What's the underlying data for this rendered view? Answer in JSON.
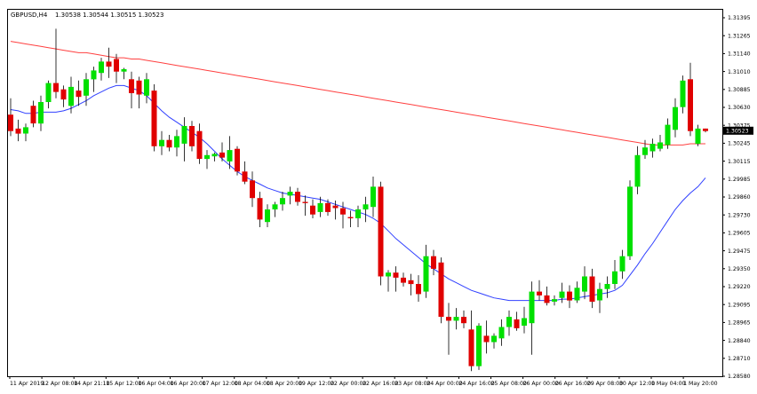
{
  "header": {
    "symbol_label": "GBPUSD,H4",
    "ohlc_label": "1.30538 1.30544 1.30515 1.30523"
  },
  "price_tag": "1.30523",
  "chart_data": {
    "type": "candlestick",
    "title": "GBPUSD,H4  1.30538 1.30544 1.30515 1.30523",
    "ylim": [
      1.2858,
      1.3148
    ],
    "y_ticks": [
      "1.31395",
      "1.31265",
      "1.31140",
      "1.31010",
      "1.30885",
      "1.30630",
      "1.30375",
      "1.30245",
      "1.30115",
      "1.29985",
      "1.29860",
      "1.29730",
      "1.29605",
      "1.29475",
      "1.29350",
      "1.29220",
      "1.29095",
      "1.28965",
      "1.28840",
      "1.28710",
      "1.28580"
    ],
    "x_ticks": [
      "11 Apr 2019",
      "12 Apr 08:00",
      "14 Apr 21:10",
      "15 Apr 12:00",
      "16 Apr 04:00",
      "16 Apr 20:00",
      "17 Apr 12:00",
      "18 Apr 04:00",
      "18 Apr 20:00",
      "19 Apr 12:00",
      "22 Apr 00:00",
      "22 Apr 16:00",
      "23 Apr 08:00",
      "24 Apr 00:00",
      "24 Apr 16:00",
      "25 Apr 08:00",
      "26 Apr 00:00",
      "26 Apr 16:00",
      "29 Apr 08:00",
      "30 Apr 12:00",
      "1 May 04:00",
      "1 May 20:00"
    ],
    "last_price": 1.30523,
    "colors": {
      "bull": "#00e000",
      "bear": "#e00000",
      "ma_slow": "#ff4040",
      "ma_fast": "#3040ff",
      "grid": "none"
    },
    "candles": [
      {
        "o": 1.3065,
        "h": 1.3078,
        "l": 1.3048,
        "c": 1.3052
      },
      {
        "o": 1.3054,
        "h": 1.3061,
        "l": 1.3044,
        "c": 1.305
      },
      {
        "o": 1.305,
        "h": 1.3058,
        "l": 1.3044,
        "c": 1.3055
      },
      {
        "o": 1.3072,
        "h": 1.3076,
        "l": 1.3055,
        "c": 1.3058
      },
      {
        "o": 1.3058,
        "h": 1.308,
        "l": 1.3052,
        "c": 1.3075
      },
      {
        "o": 1.3075,
        "h": 1.3092,
        "l": 1.307,
        "c": 1.309
      },
      {
        "o": 1.309,
        "h": 1.3133,
        "l": 1.3078,
        "c": 1.3083
      },
      {
        "o": 1.3085,
        "h": 1.3088,
        "l": 1.3071,
        "c": 1.3077
      },
      {
        "o": 1.3072,
        "h": 1.3095,
        "l": 1.3066,
        "c": 1.3087
      },
      {
        "o": 1.3084,
        "h": 1.3092,
        "l": 1.3072,
        "c": 1.3079
      },
      {
        "o": 1.308,
        "h": 1.3098,
        "l": 1.3072,
        "c": 1.3093
      },
      {
        "o": 1.3093,
        "h": 1.3103,
        "l": 1.3083,
        "c": 1.31
      },
      {
        "o": 1.3098,
        "h": 1.311,
        "l": 1.3092,
        "c": 1.3107
      },
      {
        "o": 1.3107,
        "h": 1.3118,
        "l": 1.3094,
        "c": 1.3103
      },
      {
        "o": 1.3109,
        "h": 1.3113,
        "l": 1.309,
        "c": 1.3099
      },
      {
        "o": 1.3099,
        "h": 1.3102,
        "l": 1.3093,
        "c": 1.3101
      },
      {
        "o": 1.3093,
        "h": 1.3099,
        "l": 1.307,
        "c": 1.3082
      },
      {
        "o": 1.3092,
        "h": 1.3095,
        "l": 1.307,
        "c": 1.3081
      },
      {
        "o": 1.308,
        "h": 1.3098,
        "l": 1.3074,
        "c": 1.3093
      },
      {
        "o": 1.3084,
        "h": 1.3089,
        "l": 1.3036,
        "c": 1.304
      },
      {
        "o": 1.304,
        "h": 1.3052,
        "l": 1.3033,
        "c": 1.3045
      },
      {
        "o": 1.3045,
        "h": 1.3049,
        "l": 1.3036,
        "c": 1.3039
      },
      {
        "o": 1.3039,
        "h": 1.3053,
        "l": 1.3032,
        "c": 1.3048
      },
      {
        "o": 1.3042,
        "h": 1.3063,
        "l": 1.3028,
        "c": 1.3056
      },
      {
        "o": 1.3056,
        "h": 1.306,
        "l": 1.3036,
        "c": 1.304
      },
      {
        "o": 1.3052,
        "h": 1.3058,
        "l": 1.3026,
        "c": 1.303
      },
      {
        "o": 1.303,
        "h": 1.3037,
        "l": 1.3022,
        "c": 1.3033
      },
      {
        "o": 1.3032,
        "h": 1.3035,
        "l": 1.3028,
        "c": 1.3034
      },
      {
        "o": 1.3035,
        "h": 1.3043,
        "l": 1.3028,
        "c": 1.3031
      },
      {
        "o": 1.3028,
        "h": 1.3048,
        "l": 1.3022,
        "c": 1.3037
      },
      {
        "o": 1.3038,
        "h": 1.304,
        "l": 1.3017,
        "c": 1.302
      },
      {
        "o": 1.302,
        "h": 1.3028,
        "l": 1.301,
        "c": 1.3012
      },
      {
        "o": 1.3013,
        "h": 1.302,
        "l": 1.2992,
        "c": 1.2999
      },
      {
        "o": 1.2999,
        "h": 1.3004,
        "l": 1.2976,
        "c": 1.2982
      },
      {
        "o": 1.298,
        "h": 1.2994,
        "l": 1.2976,
        "c": 1.299
      },
      {
        "o": 1.299,
        "h": 1.2996,
        "l": 1.2984,
        "c": 1.2994
      },
      {
        "o": 1.2994,
        "h": 1.3004,
        "l": 1.2989,
        "c": 1.2999
      },
      {
        "o": 1.3001,
        "h": 1.3008,
        "l": 1.2994,
        "c": 1.3004
      },
      {
        "o": 1.3004,
        "h": 1.3007,
        "l": 1.2993,
        "c": 1.2996
      },
      {
        "o": 1.2996,
        "h": 1.3001,
        "l": 1.2985,
        "c": 1.2995
      },
      {
        "o": 1.2993,
        "h": 1.2998,
        "l": 1.2983,
        "c": 1.2986
      },
      {
        "o": 1.2988,
        "h": 1.3,
        "l": 1.2984,
        "c": 1.2995
      },
      {
        "o": 1.2995,
        "h": 1.2998,
        "l": 1.2985,
        "c": 1.2988
      },
      {
        "o": 1.2993,
        "h": 1.2997,
        "l": 1.2982,
        "c": 1.2991
      },
      {
        "o": 1.2991,
        "h": 1.2996,
        "l": 1.2975,
        "c": 1.2986
      },
      {
        "o": 1.2984,
        "h": 1.2989,
        "l": 1.2976,
        "c": 1.2983
      },
      {
        "o": 1.2983,
        "h": 1.2993,
        "l": 1.2976,
        "c": 1.299
      },
      {
        "o": 1.299,
        "h": 1.3,
        "l": 1.298,
        "c": 1.2994
      },
      {
        "o": 1.2992,
        "h": 1.3016,
        "l": 1.2984,
        "c": 1.3008
      },
      {
        "o": 1.3008,
        "h": 1.3012,
        "l": 1.293,
        "c": 1.2937
      },
      {
        "o": 1.2937,
        "h": 1.2942,
        "l": 1.2925,
        "c": 1.294
      },
      {
        "o": 1.294,
        "h": 1.2945,
        "l": 1.2925,
        "c": 1.2936
      },
      {
        "o": 1.2936,
        "h": 1.294,
        "l": 1.2929,
        "c": 1.2932
      },
      {
        "o": 1.2934,
        "h": 1.2939,
        "l": 1.2922,
        "c": 1.2931
      },
      {
        "o": 1.2931,
        "h": 1.2938,
        "l": 1.2917,
        "c": 1.2923
      },
      {
        "o": 1.2925,
        "h": 1.2962,
        "l": 1.292,
        "c": 1.2953
      },
      {
        "o": 1.2953,
        "h": 1.2958,
        "l": 1.2938,
        "c": 1.2943
      },
      {
        "o": 1.2948,
        "h": 1.2952,
        "l": 1.29,
        "c": 1.2905
      },
      {
        "o": 1.2905,
        "h": 1.2916,
        "l": 1.2875,
        "c": 1.2902
      },
      {
        "o": 1.2902,
        "h": 1.2912,
        "l": 1.2895,
        "c": 1.2905
      },
      {
        "o": 1.2905,
        "h": 1.291,
        "l": 1.2896,
        "c": 1.29
      },
      {
        "o": 1.2895,
        "h": 1.291,
        "l": 1.2862,
        "c": 1.2866
      },
      {
        "o": 1.2866,
        "h": 1.29,
        "l": 1.2863,
        "c": 1.2898
      },
      {
        "o": 1.289,
        "h": 1.2902,
        "l": 1.2876,
        "c": 1.2885
      },
      {
        "o": 1.2885,
        "h": 1.2892,
        "l": 1.288,
        "c": 1.289
      },
      {
        "o": 1.2888,
        "h": 1.2903,
        "l": 1.2882,
        "c": 1.2897
      },
      {
        "o": 1.2897,
        "h": 1.291,
        "l": 1.289,
        "c": 1.2905
      },
      {
        "o": 1.2903,
        "h": 1.2909,
        "l": 1.2894,
        "c": 1.2896
      },
      {
        "o": 1.2898,
        "h": 1.2913,
        "l": 1.2892,
        "c": 1.2904
      },
      {
        "o": 1.29,
        "h": 1.2933,
        "l": 1.2875,
        "c": 1.2925
      },
      {
        "o": 1.2925,
        "h": 1.2934,
        "l": 1.2918,
        "c": 1.2922
      },
      {
        "o": 1.2922,
        "h": 1.2929,
        "l": 1.2914,
        "c": 1.2916
      },
      {
        "o": 1.2917,
        "h": 1.2922,
        "l": 1.2914,
        "c": 1.2919
      },
      {
        "o": 1.292,
        "h": 1.2932,
        "l": 1.2916,
        "c": 1.2925
      },
      {
        "o": 1.2925,
        "h": 1.293,
        "l": 1.2912,
        "c": 1.2918
      },
      {
        "o": 1.2918,
        "h": 1.2933,
        "l": 1.2916,
        "c": 1.2928
      },
      {
        "o": 1.2925,
        "h": 1.2945,
        "l": 1.2919,
        "c": 1.2937
      },
      {
        "o": 1.2937,
        "h": 1.2943,
        "l": 1.2912,
        "c": 1.2917
      },
      {
        "o": 1.2918,
        "h": 1.2932,
        "l": 1.2908,
        "c": 1.2927
      },
      {
        "o": 1.2927,
        "h": 1.2937,
        "l": 1.292,
        "c": 1.2931
      },
      {
        "o": 1.2931,
        "h": 1.295,
        "l": 1.2927,
        "c": 1.2941
      },
      {
        "o": 1.2941,
        "h": 1.2958,
        "l": 1.2935,
        "c": 1.2953
      },
      {
        "o": 1.2953,
        "h": 1.3013,
        "l": 1.295,
        "c": 1.3008
      },
      {
        "o": 1.3008,
        "h": 1.304,
        "l": 1.3002,
        "c": 1.3033
      },
      {
        "o": 1.3033,
        "h": 1.3045,
        "l": 1.303,
        "c": 1.3039
      },
      {
        "o": 1.3036,
        "h": 1.3046,
        "l": 1.3031,
        "c": 1.3042
      },
      {
        "o": 1.3038,
        "h": 1.3049,
        "l": 1.3036,
        "c": 1.3043
      },
      {
        "o": 1.3041,
        "h": 1.3062,
        "l": 1.3038,
        "c": 1.3057
      },
      {
        "o": 1.3053,
        "h": 1.3078,
        "l": 1.3047,
        "c": 1.3071
      },
      {
        "o": 1.3071,
        "h": 1.3096,
        "l": 1.3066,
        "c": 1.3092
      },
      {
        "o": 1.3093,
        "h": 1.3106,
        "l": 1.3048,
        "c": 1.3052
      },
      {
        "o": 1.3042,
        "h": 1.3057,
        "l": 1.304,
        "c": 1.3054
      },
      {
        "o": 1.3054,
        "h": 1.3054,
        "l": 1.3051,
        "c": 1.3052
      }
    ],
    "series": [
      {
        "type": "line",
        "color": "#ff4040",
        "values": [
          1.3123,
          1.3122,
          1.3121,
          1.312,
          1.3119,
          1.3118,
          1.3117,
          1.3116,
          1.3115,
          1.3114,
          1.3114,
          1.3113,
          1.3112,
          1.3111,
          1.311,
          1.311,
          1.3109,
          1.3109,
          1.3108,
          1.3107,
          1.3106,
          1.3105,
          1.3104,
          1.3103,
          1.3102,
          1.3101,
          1.31,
          1.3099,
          1.3098,
          1.3097,
          1.3096,
          1.3095,
          1.3094,
          1.3093,
          1.3092,
          1.3091,
          1.309,
          1.3089,
          1.3088,
          1.3087,
          1.3086,
          1.3085,
          1.3084,
          1.3083,
          1.3082,
          1.3081,
          1.308,
          1.3079,
          1.3078,
          1.3077,
          1.3076,
          1.3075,
          1.3074,
          1.3073,
          1.3072,
          1.3071,
          1.307,
          1.3069,
          1.3068,
          1.3067,
          1.3066,
          1.3065,
          1.3064,
          1.3063,
          1.3062,
          1.3061,
          1.306,
          1.3059,
          1.3058,
          1.3057,
          1.3056,
          1.3055,
          1.3054,
          1.3053,
          1.3052,
          1.3051,
          1.305,
          1.3049,
          1.3048,
          1.3047,
          1.3046,
          1.3045,
          1.3044,
          1.3043,
          1.3042,
          1.3041,
          1.3041,
          1.3041,
          1.3041,
          1.3041,
          1.3042,
          1.3042,
          1.3042
        ]
      },
      {
        "type": "line",
        "color": "#3040ff",
        "values": [
          1.3069,
          1.3068,
          1.3066,
          1.3066,
          1.3067,
          1.3067,
          1.3067,
          1.3068,
          1.307,
          1.3073,
          1.3076,
          1.308,
          1.3083,
          1.3086,
          1.3088,
          1.3088,
          1.3086,
          1.3084,
          1.308,
          1.3074,
          1.3068,
          1.3063,
          1.3059,
          1.3055,
          1.3051,
          1.3047,
          1.3042,
          1.3036,
          1.303,
          1.3025,
          1.302,
          1.3016,
          1.3013,
          1.301,
          1.3007,
          1.3005,
          1.3003,
          1.3002,
          1.3001,
          1.3,
          1.2999,
          1.2998,
          1.2996,
          1.2994,
          1.2992,
          1.299,
          1.2988,
          1.2986,
          1.2983,
          1.2979,
          1.2973,
          1.2967,
          1.2962,
          1.2957,
          1.2952,
          1.2947,
          1.2943,
          1.2939,
          1.2935,
          1.2932,
          1.2929,
          1.2926,
          1.2924,
          1.2922,
          1.292,
          1.2919,
          1.2918,
          1.2918,
          1.2918,
          1.2918,
          1.2918,
          1.2918,
          1.2918,
          1.2919,
          1.2919,
          1.292,
          1.2921,
          1.2922,
          1.2923,
          1.2924,
          1.2926,
          1.293,
          1.2938,
          1.2946,
          1.2955,
          1.2963,
          1.2972,
          1.2981,
          1.299,
          1.2997,
          1.3003,
          1.3008,
          1.3015
        ]
      }
    ]
  }
}
